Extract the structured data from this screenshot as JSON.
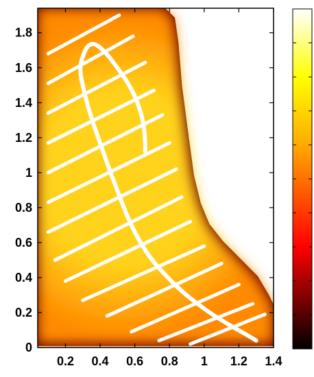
{
  "chart_data": {
    "type": "heatmap",
    "title": "",
    "xlabel": "",
    "ylabel": "",
    "xlim": [
      0.04,
      1.4
    ],
    "ylim": [
      0,
      1.94
    ],
    "x_ticks": [
      {
        "value": 0.2,
        "label": "0.2"
      },
      {
        "value": 0.4,
        "label": "0.4"
      },
      {
        "value": 0.6,
        "label": "0.6"
      },
      {
        "value": 0.8,
        "label": "0.8"
      },
      {
        "value": 1.0,
        "label": "1"
      },
      {
        "value": 1.2,
        "label": "1.2"
      },
      {
        "value": 1.4,
        "label": "1.4"
      }
    ],
    "y_ticks": [
      {
        "value": 0,
        "label": "0"
      },
      {
        "value": 0.2,
        "label": "0.2"
      },
      {
        "value": 0.4,
        "label": "0.4"
      },
      {
        "value": 0.6,
        "label": "0.6"
      },
      {
        "value": 0.8,
        "label": "0.8"
      },
      {
        "value": 1.0,
        "label": "1"
      },
      {
        "value": 1.2,
        "label": "1.2"
      },
      {
        "value": 1.4,
        "label": "1.4"
      },
      {
        "value": 1.6,
        "label": "1.6"
      },
      {
        "value": 1.8,
        "label": "1.8"
      }
    ],
    "colormap": "hot",
    "colormap_stops": [
      "#000000",
      "#ff0000",
      "#ffaa00",
      "#ffff00",
      "#ffffff"
    ],
    "background_color": "#ffffff",
    "field_colors": {
      "edge": "#6a0000",
      "mid": "#ff8a00",
      "center": "#ffd21a"
    },
    "region_boundary": [
      [
        0.04,
        0.02
      ],
      [
        0.04,
        1.94
      ],
      [
        0.76,
        1.94
      ],
      [
        0.82,
        1.88
      ],
      [
        0.84,
        1.74
      ],
      [
        0.86,
        1.5
      ],
      [
        0.9,
        1.2
      ],
      [
        0.93,
        0.98
      ],
      [
        0.97,
        0.82
      ],
      [
        1.02,
        0.7
      ],
      [
        1.1,
        0.6
      ],
      [
        1.2,
        0.5
      ],
      [
        1.3,
        0.4
      ],
      [
        1.36,
        0.3
      ],
      [
        1.4,
        0.22
      ],
      [
        1.4,
        0.02
      ]
    ],
    "streaks": [
      [
        [
          0.1,
          1.68
        ],
        [
          0.51,
          1.9
        ]
      ],
      [
        [
          0.1,
          1.51
        ],
        [
          0.59,
          1.78
        ]
      ],
      [
        [
          0.1,
          1.34
        ],
        [
          0.66,
          1.63
        ]
      ],
      [
        [
          0.1,
          1.17
        ],
        [
          0.71,
          1.47
        ]
      ],
      [
        [
          0.1,
          1.0
        ],
        [
          0.76,
          1.33
        ]
      ],
      [
        [
          0.1,
          0.83
        ],
        [
          0.8,
          1.17
        ]
      ],
      [
        [
          0.1,
          0.66
        ],
        [
          0.84,
          1.02
        ]
      ],
      [
        [
          0.14,
          0.5
        ],
        [
          0.87,
          0.86
        ]
      ],
      [
        [
          0.2,
          0.38
        ],
        [
          0.92,
          0.72
        ]
      ],
      [
        [
          0.3,
          0.27
        ],
        [
          1.0,
          0.58
        ]
      ],
      [
        [
          0.44,
          0.18
        ],
        [
          1.1,
          0.48
        ]
      ],
      [
        [
          0.58,
          0.09
        ],
        [
          1.2,
          0.36
        ]
      ],
      [
        [
          0.74,
          0.04
        ],
        [
          1.28,
          0.25
        ]
      ],
      [
        [
          0.92,
          0.02
        ],
        [
          1.35,
          0.19
        ]
      ]
    ],
    "trajectory": [
      [
        0.66,
        1.12
      ],
      [
        0.66,
        1.23
      ],
      [
        0.63,
        1.37
      ],
      [
        0.57,
        1.5
      ],
      [
        0.5,
        1.6
      ],
      [
        0.43,
        1.69
      ],
      [
        0.37,
        1.74
      ],
      [
        0.33,
        1.73
      ],
      [
        0.3,
        1.67
      ],
      [
        0.28,
        1.59
      ],
      [
        0.31,
        1.45
      ],
      [
        0.35,
        1.31
      ],
      [
        0.41,
        1.14
      ],
      [
        0.46,
        1.0
      ],
      [
        0.51,
        0.87
      ],
      [
        0.56,
        0.74
      ],
      [
        0.62,
        0.62
      ],
      [
        0.69,
        0.51
      ],
      [
        0.77,
        0.42
      ],
      [
        0.86,
        0.33
      ],
      [
        0.96,
        0.25
      ],
      [
        1.06,
        0.18
      ],
      [
        1.16,
        0.12
      ],
      [
        1.25,
        0.07
      ],
      [
        1.3,
        0.04
      ]
    ]
  }
}
